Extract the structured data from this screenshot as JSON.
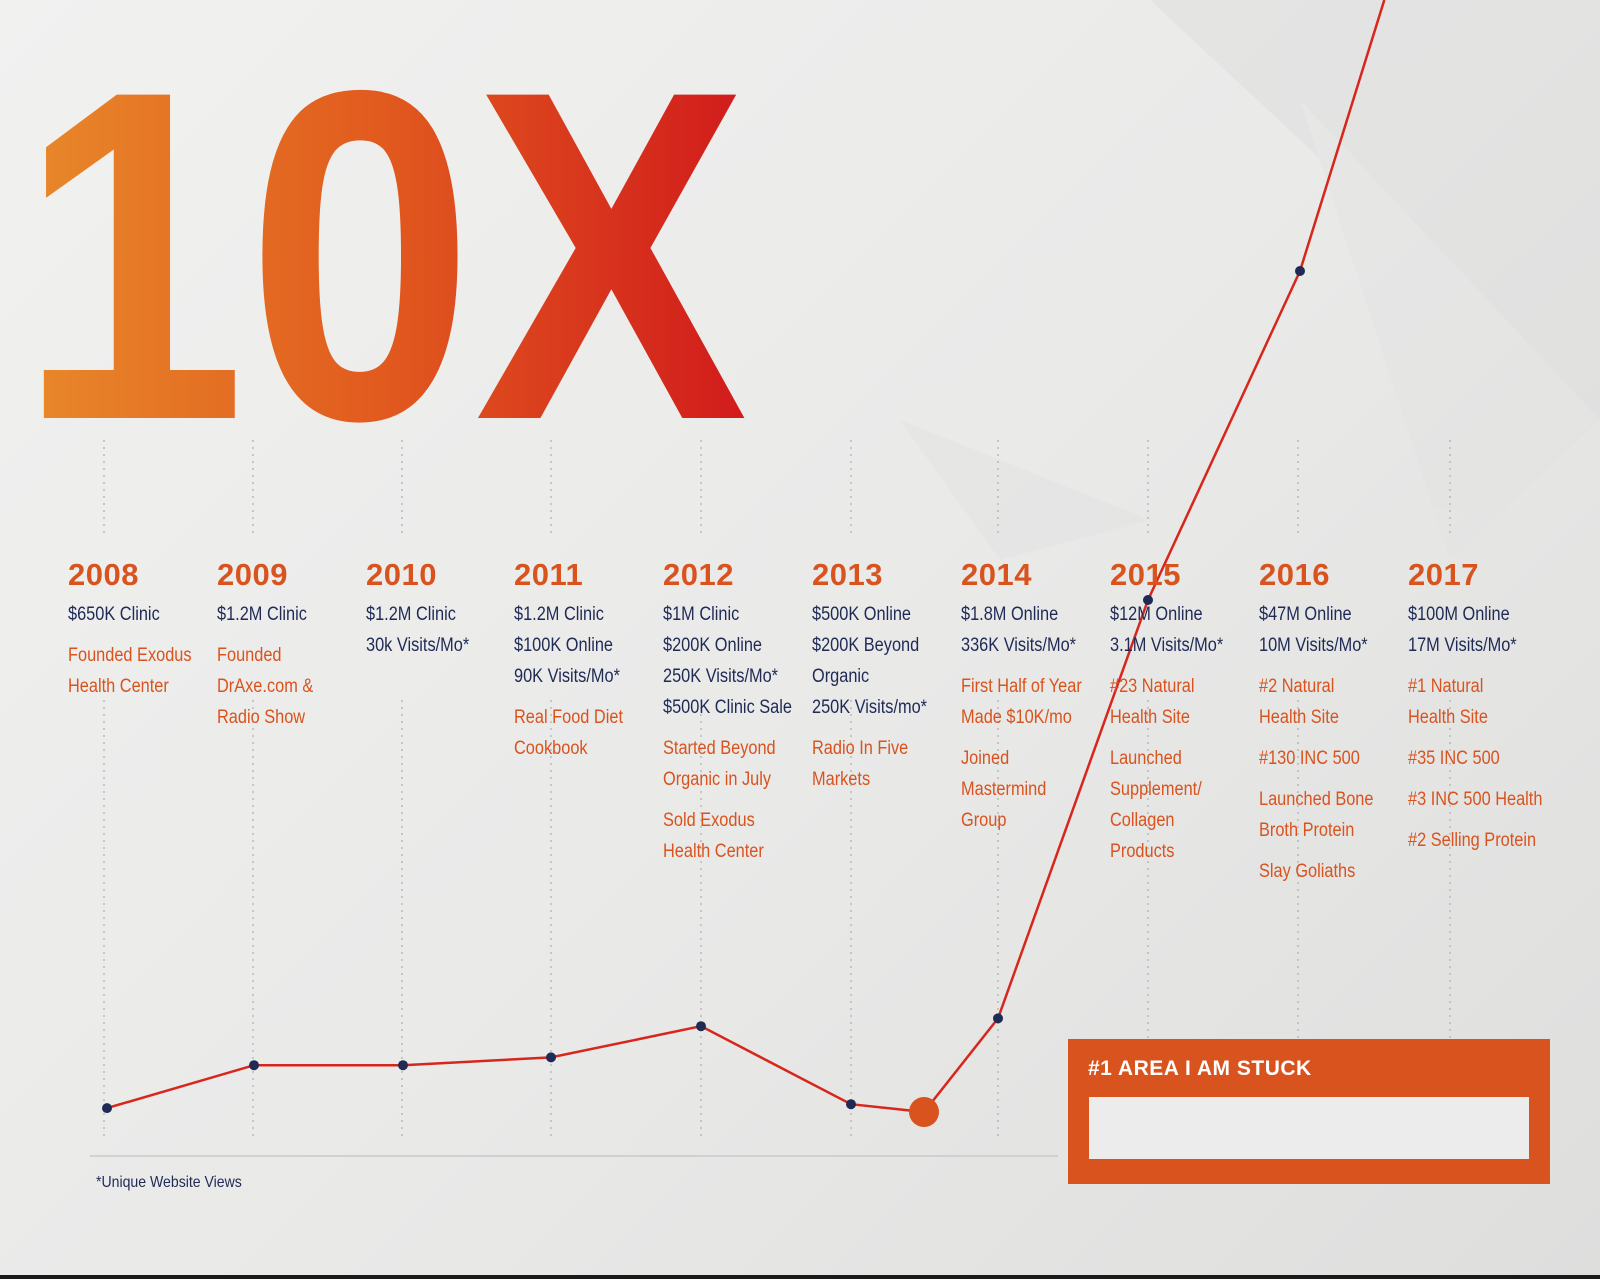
{
  "headline": "10X",
  "colors": {
    "orange": "#d9531e",
    "navy": "#1f2a55",
    "line": "#d7261c",
    "headline_gradient": [
      "#e8892a",
      "#e15a1e",
      "#d11a1c"
    ]
  },
  "chart_data": {
    "type": "line",
    "title": "10X",
    "x": [
      "2008",
      "2009",
      "2010",
      "2011",
      "2012",
      "2013",
      "2013.5",
      "2014",
      "2015",
      "2016",
      "2017"
    ],
    "series": [
      {
        "values": [
          {
            "x": "2008",
            "y": 0.65
          },
          {
            "x": "2009",
            "y": 1.2
          },
          {
            "x": "2010",
            "y": 1.2
          },
          {
            "x": "2011",
            "y": 1.3
          },
          {
            "x": "2012",
            "y": 1.7
          },
          {
            "x": "2013",
            "y": 0.7
          },
          {
            "x": "2013.5",
            "y": 0.6,
            "highlight": true
          },
          {
            "x": "2014",
            "y": 1.8
          },
          {
            "x": "2015",
            "y": 12
          },
          {
            "x": "2016",
            "y": 47
          },
          {
            "x": "2017",
            "y": 100
          }
        ]
      }
    ],
    "grid": "dotted vertical guide per year",
    "legend": "none"
  },
  "years": [
    {
      "year": "2008",
      "stats": [
        "$650K Clinic"
      ],
      "events": [
        "Founded Exodus|Health Center"
      ]
    },
    {
      "year": "2009",
      "stats": [
        "$1.2M Clinic"
      ],
      "events": [
        "Founded|DrAxe.com &|Radio Show"
      ]
    },
    {
      "year": "2010",
      "stats": [
        "$1.2M Clinic",
        "30k Visits/Mo*"
      ],
      "events": []
    },
    {
      "year": "2011",
      "stats": [
        "$1.2M Clinic",
        "$100K Online",
        "90K Visits/Mo*"
      ],
      "events": [
        "Real Food Diet|Cookbook"
      ]
    },
    {
      "year": "2012",
      "stats": [
        "$1M Clinic",
        "$200K Online",
        "250K Visits/Mo*",
        "$500K Clinic Sale"
      ],
      "events": [
        "Started Beyond|Organic in July",
        "Sold Exodus|Health Center"
      ]
    },
    {
      "year": "2013",
      "stats": [
        "$500K Online",
        "$200K Beyond",
        "Organic",
        "250K Visits/mo*"
      ],
      "events": [
        "Radio In Five|Markets"
      ]
    },
    {
      "year": "2014",
      "stats": [
        "$1.8M Online",
        "336K Visits/Mo*"
      ],
      "events": [
        "First Half of Year|Made $10K/mo",
        "Joined|Mastermind|Group"
      ]
    },
    {
      "year": "2015",
      "stats": [
        "$12M Online",
        "3.1M Visits/Mo*"
      ],
      "events": [
        "#23 Natural|Health Site",
        "Launched|Supplement/|Collagen|Products"
      ]
    },
    {
      "year": "2016",
      "stats": [
        "$47M Online",
        "10M Visits/Mo*"
      ],
      "events": [
        "#2 Natural|Health Site",
        "#130 INC 500",
        "Launched Bone|Broth Protein",
        "Slay Goliaths"
      ]
    },
    {
      "year": "2017",
      "stats": [
        "$100M Online",
        "17M Visits/Mo*"
      ],
      "events": [
        "#1 Natural|Health Site",
        "#35 INC 500",
        "#3 INC 500 Health",
        "#2 Selling Protein"
      ]
    }
  ],
  "footnote": "*Unique Website Views",
  "stuck": {
    "label": "#1 AREA I AM STUCK",
    "value": "",
    "placeholder": ""
  }
}
